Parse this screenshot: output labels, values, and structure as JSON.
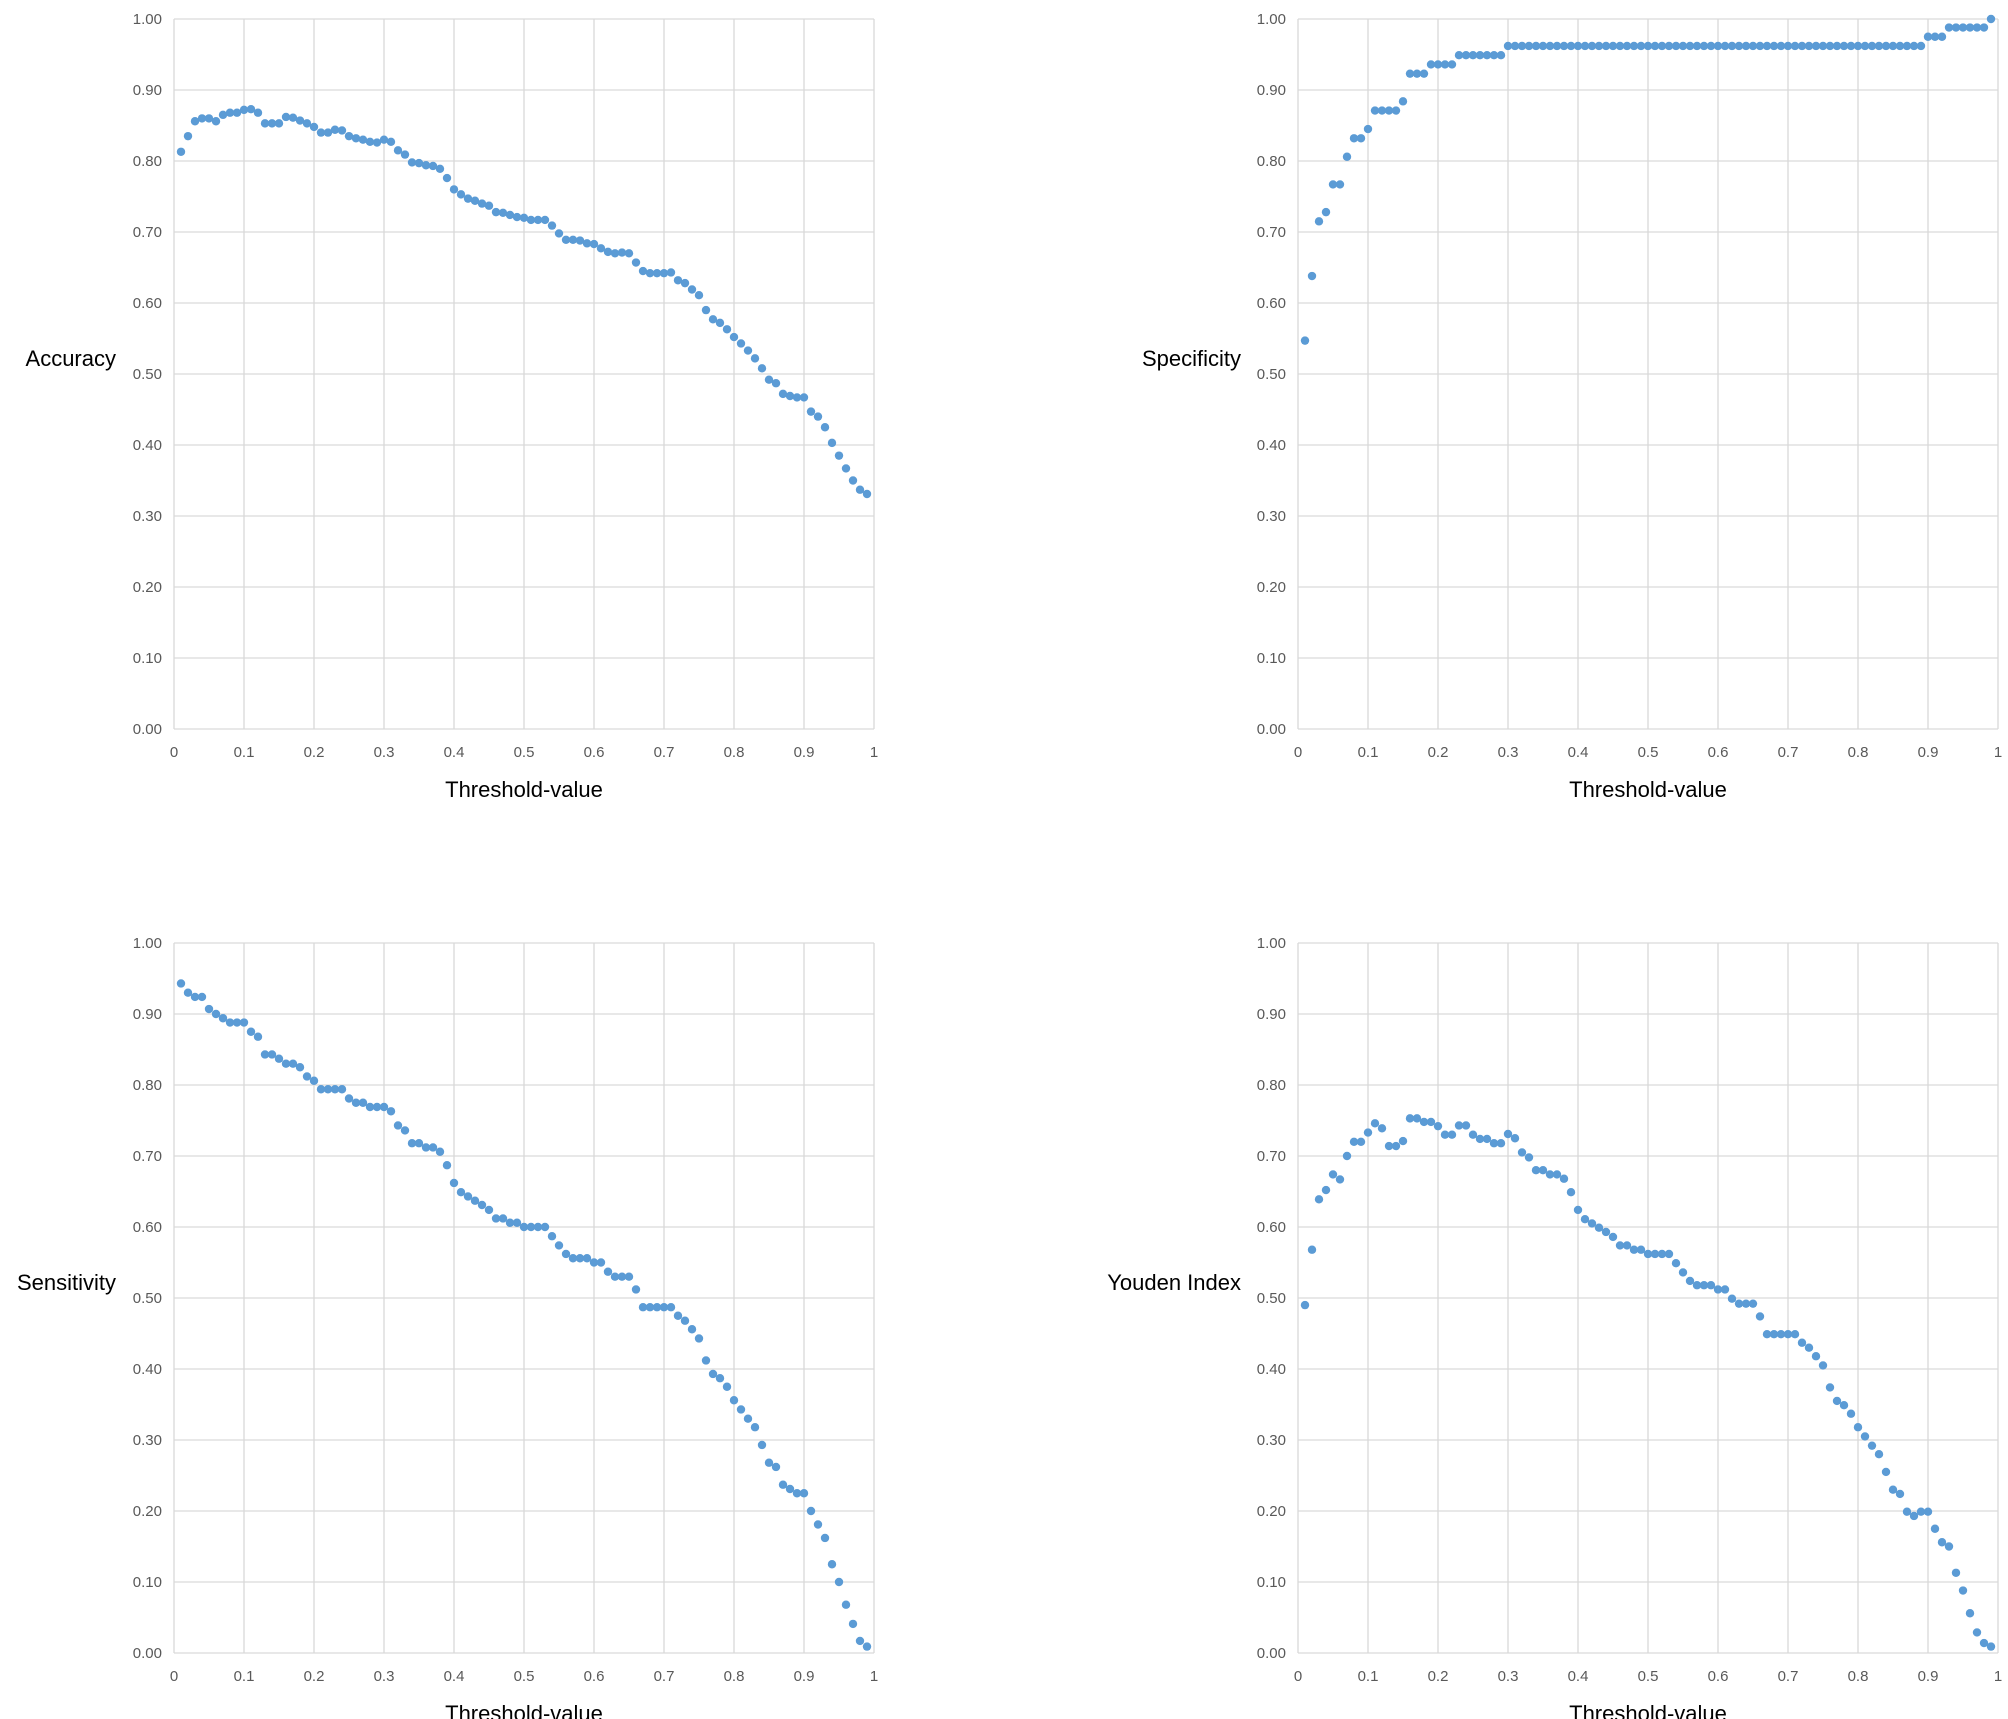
{
  "chart_data": [
    {
      "type": "scatter",
      "ylabel": "Accuracy",
      "xlabel": "Threshold-value",
      "xlim": [
        0,
        1
      ],
      "ylim": [
        0,
        1
      ],
      "grid": true,
      "x_ticks": [
        "0",
        "0.1",
        "0.2",
        "0.3",
        "0.4",
        "0.5",
        "0.6",
        "0.7",
        "0.8",
        "0.9",
        "1"
      ],
      "y_ticks": [
        "0.00",
        "0.10",
        "0.20",
        "0.30",
        "0.40",
        "0.50",
        "0.60",
        "0.70",
        "0.80",
        "0.90",
        "1.00"
      ],
      "marker_color": "#5b9bd5",
      "x": [
        0.01,
        0.02,
        0.03,
        0.04,
        0.05,
        0.06,
        0.07,
        0.08,
        0.09,
        0.1,
        0.11,
        0.12,
        0.13,
        0.14,
        0.15,
        0.16,
        0.17,
        0.18,
        0.19,
        0.2,
        0.21,
        0.22,
        0.23,
        0.24,
        0.25,
        0.26,
        0.27,
        0.28,
        0.29,
        0.3,
        0.31,
        0.32,
        0.33,
        0.34,
        0.35,
        0.36,
        0.37,
        0.38,
        0.39,
        0.4,
        0.41,
        0.42,
        0.43,
        0.44,
        0.45,
        0.46,
        0.47,
        0.48,
        0.49,
        0.5,
        0.51,
        0.52,
        0.53,
        0.54,
        0.55,
        0.56,
        0.57,
        0.58,
        0.59,
        0.6,
        0.61,
        0.62,
        0.63,
        0.64,
        0.65,
        0.66,
        0.67,
        0.68,
        0.69,
        0.7,
        0.71,
        0.72,
        0.73,
        0.74,
        0.75,
        0.76,
        0.77,
        0.78,
        0.79,
        0.8,
        0.81,
        0.82,
        0.83,
        0.84,
        0.85,
        0.86,
        0.87,
        0.88,
        0.89,
        0.9,
        0.91,
        0.92,
        0.93,
        0.94,
        0.95,
        0.96,
        0.97,
        0.98,
        0.99
      ],
      "y": [
        0.813,
        0.835,
        0.856,
        0.86,
        0.86,
        0.856,
        0.865,
        0.868,
        0.868,
        0.872,
        0.873,
        0.868,
        0.853,
        0.853,
        0.853,
        0.862,
        0.861,
        0.857,
        0.853,
        0.848,
        0.84,
        0.84,
        0.844,
        0.843,
        0.835,
        0.832,
        0.83,
        0.827,
        0.826,
        0.83,
        0.827,
        0.815,
        0.809,
        0.798,
        0.797,
        0.794,
        0.793,
        0.789,
        0.776,
        0.76,
        0.753,
        0.747,
        0.744,
        0.74,
        0.737,
        0.728,
        0.727,
        0.724,
        0.721,
        0.72,
        0.717,
        0.717,
        0.717,
        0.709,
        0.698,
        0.689,
        0.689,
        0.688,
        0.684,
        0.683,
        0.677,
        0.672,
        0.67,
        0.671,
        0.67,
        0.657,
        0.645,
        0.642,
        0.642,
        0.642,
        0.643,
        0.632,
        0.628,
        0.619,
        0.611,
        0.59,
        0.577,
        0.572,
        0.563,
        0.552,
        0.543,
        0.533,
        0.522,
        0.508,
        0.492,
        0.487,
        0.472,
        0.469,
        0.467,
        0.467,
        0.447,
        0.44,
        0.425,
        0.403,
        0.385,
        0.367,
        0.35,
        0.337,
        0.331
      ]
    },
    {
      "type": "scatter",
      "ylabel": "Specificity",
      "xlabel": "Threshold-value",
      "xlim": [
        0,
        1
      ],
      "ylim": [
        0,
        1
      ],
      "grid": true,
      "x_ticks": [
        "0",
        "0.1",
        "0.2",
        "0.3",
        "0.4",
        "0.5",
        "0.6",
        "0.7",
        "0.8",
        "0.9",
        "1"
      ],
      "y_ticks": [
        "0.00",
        "0.10",
        "0.20",
        "0.30",
        "0.40",
        "0.50",
        "0.60",
        "0.70",
        "0.80",
        "0.90",
        "1.00"
      ],
      "marker_color": "#5b9bd5",
      "x": [
        0.01,
        0.02,
        0.03,
        0.04,
        0.05,
        0.06,
        0.07,
        0.08,
        0.09,
        0.1,
        0.11,
        0.12,
        0.13,
        0.14,
        0.15,
        0.16,
        0.17,
        0.18,
        0.19,
        0.2,
        0.21,
        0.22,
        0.23,
        0.24,
        0.25,
        0.26,
        0.27,
        0.28,
        0.29,
        0.3,
        0.31,
        0.32,
        0.33,
        0.34,
        0.35,
        0.36,
        0.37,
        0.38,
        0.39,
        0.4,
        0.41,
        0.42,
        0.43,
        0.44,
        0.45,
        0.46,
        0.47,
        0.48,
        0.49,
        0.5,
        0.51,
        0.52,
        0.53,
        0.54,
        0.55,
        0.56,
        0.57,
        0.58,
        0.59,
        0.6,
        0.61,
        0.62,
        0.63,
        0.64,
        0.65,
        0.66,
        0.67,
        0.68,
        0.69,
        0.7,
        0.71,
        0.72,
        0.73,
        0.74,
        0.75,
        0.76,
        0.77,
        0.78,
        0.79,
        0.8,
        0.81,
        0.82,
        0.83,
        0.84,
        0.85,
        0.86,
        0.87,
        0.88,
        0.89,
        0.9,
        0.91,
        0.92,
        0.93,
        0.94,
        0.95,
        0.96,
        0.97,
        0.98,
        0.99
      ],
      "y": [
        0.547,
        0.638,
        0.715,
        0.728,
        0.767,
        0.767,
        0.806,
        0.832,
        0.832,
        0.845,
        0.871,
        0.871,
        0.871,
        0.871,
        0.884,
        0.923,
        0.923,
        0.923,
        0.936,
        0.936,
        0.936,
        0.936,
        0.949,
        0.949,
        0.949,
        0.949,
        0.949,
        0.949,
        0.949,
        0.962,
        0.962,
        0.962,
        0.962,
        0.962,
        0.962,
        0.962,
        0.962,
        0.962,
        0.962,
        0.962,
        0.962,
        0.962,
        0.962,
        0.962,
        0.962,
        0.962,
        0.962,
        0.962,
        0.962,
        0.962,
        0.962,
        0.962,
        0.962,
        0.962,
        0.962,
        0.962,
        0.962,
        0.962,
        0.962,
        0.962,
        0.962,
        0.962,
        0.962,
        0.962,
        0.962,
        0.962,
        0.962,
        0.962,
        0.962,
        0.962,
        0.962,
        0.962,
        0.962,
        0.962,
        0.962,
        0.962,
        0.962,
        0.962,
        0.962,
        0.962,
        0.962,
        0.962,
        0.962,
        0.962,
        0.962,
        0.962,
        0.962,
        0.962,
        0.962,
        0.975,
        0.975,
        0.975,
        0.988,
        0.988,
        0.988,
        0.988,
        0.988,
        0.988,
        1.0
      ]
    },
    {
      "type": "scatter",
      "ylabel": "Sensitivity",
      "xlabel": "Threshold-value",
      "xlim": [
        0,
        1
      ],
      "ylim": [
        0,
        1
      ],
      "grid": true,
      "x_ticks": [
        "0",
        "0.1",
        "0.2",
        "0.3",
        "0.4",
        "0.5",
        "0.6",
        "0.7",
        "0.8",
        "0.9",
        "1"
      ],
      "y_ticks": [
        "0.00",
        "0.10",
        "0.20",
        "0.30",
        "0.40",
        "0.50",
        "0.60",
        "0.70",
        "0.80",
        "0.90",
        "1.00"
      ],
      "marker_color": "#5b9bd5",
      "x": [
        0.01,
        0.02,
        0.03,
        0.04,
        0.05,
        0.06,
        0.07,
        0.08,
        0.09,
        0.1,
        0.11,
        0.12,
        0.13,
        0.14,
        0.15,
        0.16,
        0.17,
        0.18,
        0.19,
        0.2,
        0.21,
        0.22,
        0.23,
        0.24,
        0.25,
        0.26,
        0.27,
        0.28,
        0.29,
        0.3,
        0.31,
        0.32,
        0.33,
        0.34,
        0.35,
        0.36,
        0.37,
        0.38,
        0.39,
        0.4,
        0.41,
        0.42,
        0.43,
        0.44,
        0.45,
        0.46,
        0.47,
        0.48,
        0.49,
        0.5,
        0.51,
        0.52,
        0.53,
        0.54,
        0.55,
        0.56,
        0.57,
        0.58,
        0.59,
        0.6,
        0.61,
        0.62,
        0.63,
        0.64,
        0.65,
        0.66,
        0.67,
        0.68,
        0.69,
        0.7,
        0.71,
        0.72,
        0.73,
        0.74,
        0.75,
        0.76,
        0.77,
        0.78,
        0.79,
        0.8,
        0.81,
        0.82,
        0.83,
        0.84,
        0.85,
        0.86,
        0.87,
        0.88,
        0.89,
        0.9,
        0.91,
        0.92,
        0.93,
        0.94,
        0.95,
        0.96,
        0.97,
        0.98,
        0.99
      ],
      "y": [
        0.943,
        0.93,
        0.924,
        0.924,
        0.907,
        0.9,
        0.894,
        0.888,
        0.888,
        0.888,
        0.875,
        0.868,
        0.843,
        0.843,
        0.837,
        0.83,
        0.83,
        0.825,
        0.812,
        0.806,
        0.794,
        0.794,
        0.794,
        0.794,
        0.781,
        0.775,
        0.775,
        0.769,
        0.769,
        0.769,
        0.763,
        0.743,
        0.736,
        0.718,
        0.718,
        0.712,
        0.712,
        0.706,
        0.687,
        0.662,
        0.649,
        0.643,
        0.637,
        0.631,
        0.624,
        0.612,
        0.612,
        0.606,
        0.606,
        0.6,
        0.6,
        0.6,
        0.6,
        0.587,
        0.574,
        0.562,
        0.556,
        0.556,
        0.556,
        0.55,
        0.55,
        0.537,
        0.53,
        0.53,
        0.53,
        0.512,
        0.487,
        0.487,
        0.487,
        0.487,
        0.487,
        0.475,
        0.468,
        0.456,
        0.443,
        0.412,
        0.393,
        0.387,
        0.375,
        0.356,
        0.343,
        0.33,
        0.318,
        0.293,
        0.268,
        0.262,
        0.237,
        0.231,
        0.225,
        0.225,
        0.2,
        0.181,
        0.162,
        0.125,
        0.1,
        0.068,
        0.041,
        0.017,
        0.009
      ]
    },
    {
      "type": "scatter",
      "ylabel": "Youden Index",
      "xlabel": "Threshold-value",
      "xlim": [
        0,
        1
      ],
      "ylim": [
        0,
        1
      ],
      "grid": true,
      "x_ticks": [
        "0",
        "0.1",
        "0.2",
        "0.3",
        "0.4",
        "0.5",
        "0.6",
        "0.7",
        "0.8",
        "0.9",
        "1"
      ],
      "y_ticks": [
        "0.00",
        "0.10",
        "0.20",
        "0.30",
        "0.40",
        "0.50",
        "0.60",
        "0.70",
        "0.80",
        "0.90",
        "1.00"
      ],
      "marker_color": "#5b9bd5",
      "x": [
        0.01,
        0.02,
        0.03,
        0.04,
        0.05,
        0.06,
        0.07,
        0.08,
        0.09,
        0.1,
        0.11,
        0.12,
        0.13,
        0.14,
        0.15,
        0.16,
        0.17,
        0.18,
        0.19,
        0.2,
        0.21,
        0.22,
        0.23,
        0.24,
        0.25,
        0.26,
        0.27,
        0.28,
        0.29,
        0.3,
        0.31,
        0.32,
        0.33,
        0.34,
        0.35,
        0.36,
        0.37,
        0.38,
        0.39,
        0.4,
        0.41,
        0.42,
        0.43,
        0.44,
        0.45,
        0.46,
        0.47,
        0.48,
        0.49,
        0.5,
        0.51,
        0.52,
        0.53,
        0.54,
        0.55,
        0.56,
        0.57,
        0.58,
        0.59,
        0.6,
        0.61,
        0.62,
        0.63,
        0.64,
        0.65,
        0.66,
        0.67,
        0.68,
        0.69,
        0.7,
        0.71,
        0.72,
        0.73,
        0.74,
        0.75,
        0.76,
        0.77,
        0.78,
        0.79,
        0.8,
        0.81,
        0.82,
        0.83,
        0.84,
        0.85,
        0.86,
        0.87,
        0.88,
        0.89,
        0.9,
        0.91,
        0.92,
        0.93,
        0.94,
        0.95,
        0.96,
        0.97,
        0.98,
        0.99
      ],
      "y": [
        0.49,
        0.568,
        0.639,
        0.652,
        0.674,
        0.667,
        0.7,
        0.72,
        0.72,
        0.733,
        0.746,
        0.739,
        0.714,
        0.714,
        0.721,
        0.753,
        0.753,
        0.748,
        0.748,
        0.742,
        0.73,
        0.73,
        0.743,
        0.743,
        0.73,
        0.724,
        0.724,
        0.718,
        0.718,
        0.731,
        0.725,
        0.705,
        0.698,
        0.68,
        0.68,
        0.674,
        0.674,
        0.668,
        0.649,
        0.624,
        0.611,
        0.605,
        0.599,
        0.593,
        0.586,
        0.574,
        0.574,
        0.568,
        0.568,
        0.562,
        0.562,
        0.562,
        0.562,
        0.549,
        0.536,
        0.524,
        0.518,
        0.518,
        0.518,
        0.512,
        0.512,
        0.499,
        0.492,
        0.492,
        0.492,
        0.474,
        0.449,
        0.449,
        0.449,
        0.449,
        0.449,
        0.437,
        0.43,
        0.418,
        0.405,
        0.374,
        0.355,
        0.349,
        0.337,
        0.318,
        0.305,
        0.292,
        0.28,
        0.255,
        0.23,
        0.224,
        0.199,
        0.193,
        0.199,
        0.199,
        0.175,
        0.156,
        0.15,
        0.113,
        0.088,
        0.056,
        0.029,
        0.014,
        0.009
      ]
    }
  ]
}
